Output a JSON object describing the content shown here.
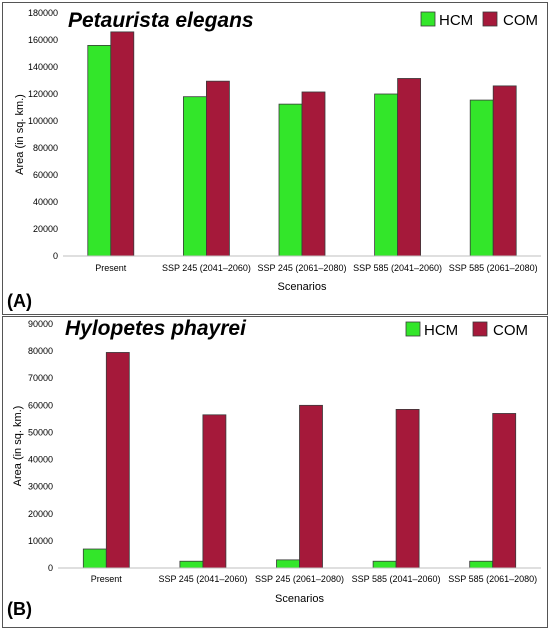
{
  "colors": {
    "hcm": "#33e62a",
    "com": "#a5193a"
  },
  "chart_data": [
    {
      "type": "bar",
      "panel_label": "(A)",
      "title": "Petaurista elegans",
      "xlabel": "Scenarios",
      "ylabel": "Area (in sq. km.)",
      "ylim": [
        0,
        180000
      ],
      "yticks": [
        0,
        20000,
        40000,
        60000,
        80000,
        100000,
        120000,
        140000,
        160000,
        180000
      ],
      "categories": [
        "Present",
        "SSP 245 (2041–2060)",
        "SSP 245 (2061–2080)",
        "SSP 585 (2041–2060)",
        "SSP 585 (2061–2080)"
      ],
      "series": [
        {
          "name": "HCM",
          "values": [
            156000,
            118000,
            112500,
            120000,
            115500
          ]
        },
        {
          "name": "COM",
          "values": [
            166000,
            129500,
            121500,
            131500,
            126000
          ]
        }
      ],
      "legend": "top-right",
      "grid": false
    },
    {
      "type": "bar",
      "panel_label": "(B)",
      "title": "Hylopetes phayrei",
      "xlabel": "Scenarios",
      "ylabel": "Area (in sq. km.)",
      "ylim": [
        0,
        90000
      ],
      "yticks": [
        0,
        10000,
        20000,
        30000,
        40000,
        50000,
        60000,
        70000,
        80000,
        90000
      ],
      "categories": [
        "Present",
        "SSP 245 (2041–2060)",
        "SSP 245 (2061–2080)",
        "SSP 585 (2041–2060)",
        "SSP 585 (2061–2080)"
      ],
      "series": [
        {
          "name": "HCM",
          "values": [
            7000,
            2500,
            3000,
            2500,
            2500
          ]
        },
        {
          "name": "COM",
          "values": [
            79500,
            56500,
            60000,
            58500,
            57000
          ]
        }
      ],
      "legend": "top-right",
      "grid": false
    }
  ]
}
